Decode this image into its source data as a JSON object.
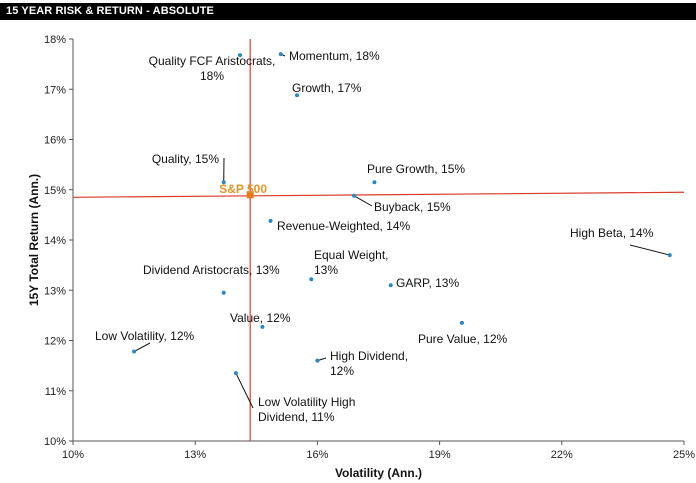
{
  "header": {
    "title": "15 YEAR RISK & RETURN - ABSOLUTE"
  },
  "colors": {
    "point": "#2e86c1",
    "benchmark": "#e07b1f",
    "crosshair": "#d93a2b",
    "header_bg": "#000000"
  },
  "chart_data": {
    "type": "scatter",
    "title": "15 YEAR RISK & RETURN - ABSOLUTE",
    "xlabel": "Volatility (Ann.)",
    "ylabel": "15Y Total Return (Ann.)",
    "xlim": [
      10,
      25
    ],
    "ylim": [
      10,
      18
    ],
    "xticks": [
      10,
      13,
      16,
      19,
      22,
      25
    ],
    "yticks": [
      10,
      11,
      12,
      13,
      14,
      15,
      16,
      17,
      18
    ],
    "grid": false,
    "benchmark": {
      "name": "S&P 500",
      "x": 14.35,
      "y": 14.9,
      "label": "S&P 500"
    },
    "crosshair": {
      "vertical_x": 14.35,
      "horizontal_y_start": 14.85,
      "horizontal_y_end": 14.95
    },
    "points": [
      {
        "name": "Quality FCF Aristocrats",
        "x": 14.1,
        "y": 17.68,
        "label_lines": [
          "Quality FCF Aristocrats,",
          "18%"
        ]
      },
      {
        "name": "Momentum",
        "x": 15.1,
        "y": 17.7,
        "label_lines": [
          "Momentum, 18%"
        ]
      },
      {
        "name": "Growth",
        "x": 15.5,
        "y": 16.88,
        "label_lines": [
          "Growth, 17%"
        ]
      },
      {
        "name": "Quality",
        "x": 13.7,
        "y": 15.15,
        "label_lines": [
          "Quality, 15%"
        ]
      },
      {
        "name": "Pure Growth",
        "x": 17.4,
        "y": 15.15,
        "label_lines": [
          "Pure Growth, 15%"
        ]
      },
      {
        "name": "Buyback",
        "x": 16.9,
        "y": 14.88,
        "label_lines": [
          "Buyback, 15%"
        ]
      },
      {
        "name": "Revenue-Weighted",
        "x": 14.85,
        "y": 14.38,
        "label_lines": [
          "Revenue-Weighted, 14%"
        ]
      },
      {
        "name": "High Beta",
        "x": 24.65,
        "y": 13.7,
        "label_lines": [
          "High Beta, 14%"
        ]
      },
      {
        "name": "Equal Weight",
        "x": 15.85,
        "y": 13.22,
        "label_lines": [
          "Equal Weight,",
          "13%"
        ]
      },
      {
        "name": "Dividend Aristocrats",
        "x": 13.7,
        "y": 12.95,
        "label_lines": [
          "Dividend Aristocrats, 13%"
        ]
      },
      {
        "name": "GARP",
        "x": 17.8,
        "y": 13.1,
        "label_lines": [
          "GARP, 13%"
        ]
      },
      {
        "name": "Value",
        "x": 14.65,
        "y": 12.27,
        "label_lines": [
          "Value, 12%"
        ]
      },
      {
        "name": "Low Volatility",
        "x": 11.5,
        "y": 11.78,
        "label_lines": [
          "Low Volatility, 12%"
        ]
      },
      {
        "name": "Pure Value",
        "x": 19.55,
        "y": 12.35,
        "label_lines": [
          "Pure Value, 12%"
        ]
      },
      {
        "name": "High Dividend",
        "x": 16.0,
        "y": 11.6,
        "label_lines": [
          "High Dividend,",
          "12%"
        ]
      },
      {
        "name": "Low Volatility High Dividend",
        "x": 14.0,
        "y": 11.35,
        "label_lines": [
          "Low Volatility High",
          "Dividend, 11%"
        ]
      }
    ]
  }
}
